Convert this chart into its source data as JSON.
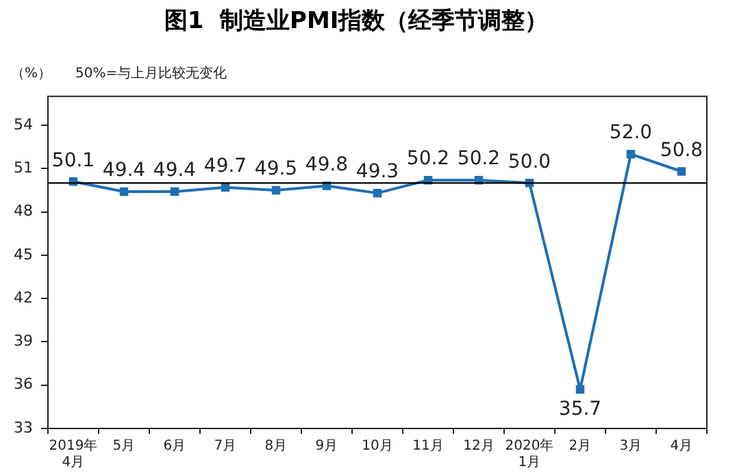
{
  "chart_data": {
    "type": "line",
    "title": "图1  制造业PMI指数（经季节调整）",
    "ylabel": "（%）",
    "annotations": [
      "50%=与上月比较无变化"
    ],
    "categories": [
      "2019年\n4月",
      "5月",
      "6月",
      "7月",
      "8月",
      "9月",
      "10月",
      "11月",
      "12月",
      "2020年\n1月",
      "2月",
      "3月",
      "4月"
    ],
    "series": [
      {
        "color": "#1f6fb4",
        "values": [
          50.1,
          49.4,
          49.4,
          49.7,
          49.5,
          49.8,
          49.3,
          50.2,
          50.2,
          50.0,
          35.7,
          52.0,
          50.8
        ],
        "value_labels": [
          "50.1",
          "49.4",
          "49.4",
          "49.7",
          "49.5",
          "49.8",
          "49.3",
          "50.2",
          "50.2",
          "50.0",
          "35.7",
          "52.0",
          "50.8"
        ]
      }
    ],
    "ylim": [
      33,
      56
    ],
    "yticks": [
      33,
      36,
      39,
      42,
      45,
      48,
      51,
      54
    ],
    "grid": false,
    "legend": false,
    "marker": "square",
    "line_style": "solid",
    "ref_lines": [
      {
        "axis": "y",
        "value": 50,
        "color": "#000000"
      }
    ]
  }
}
